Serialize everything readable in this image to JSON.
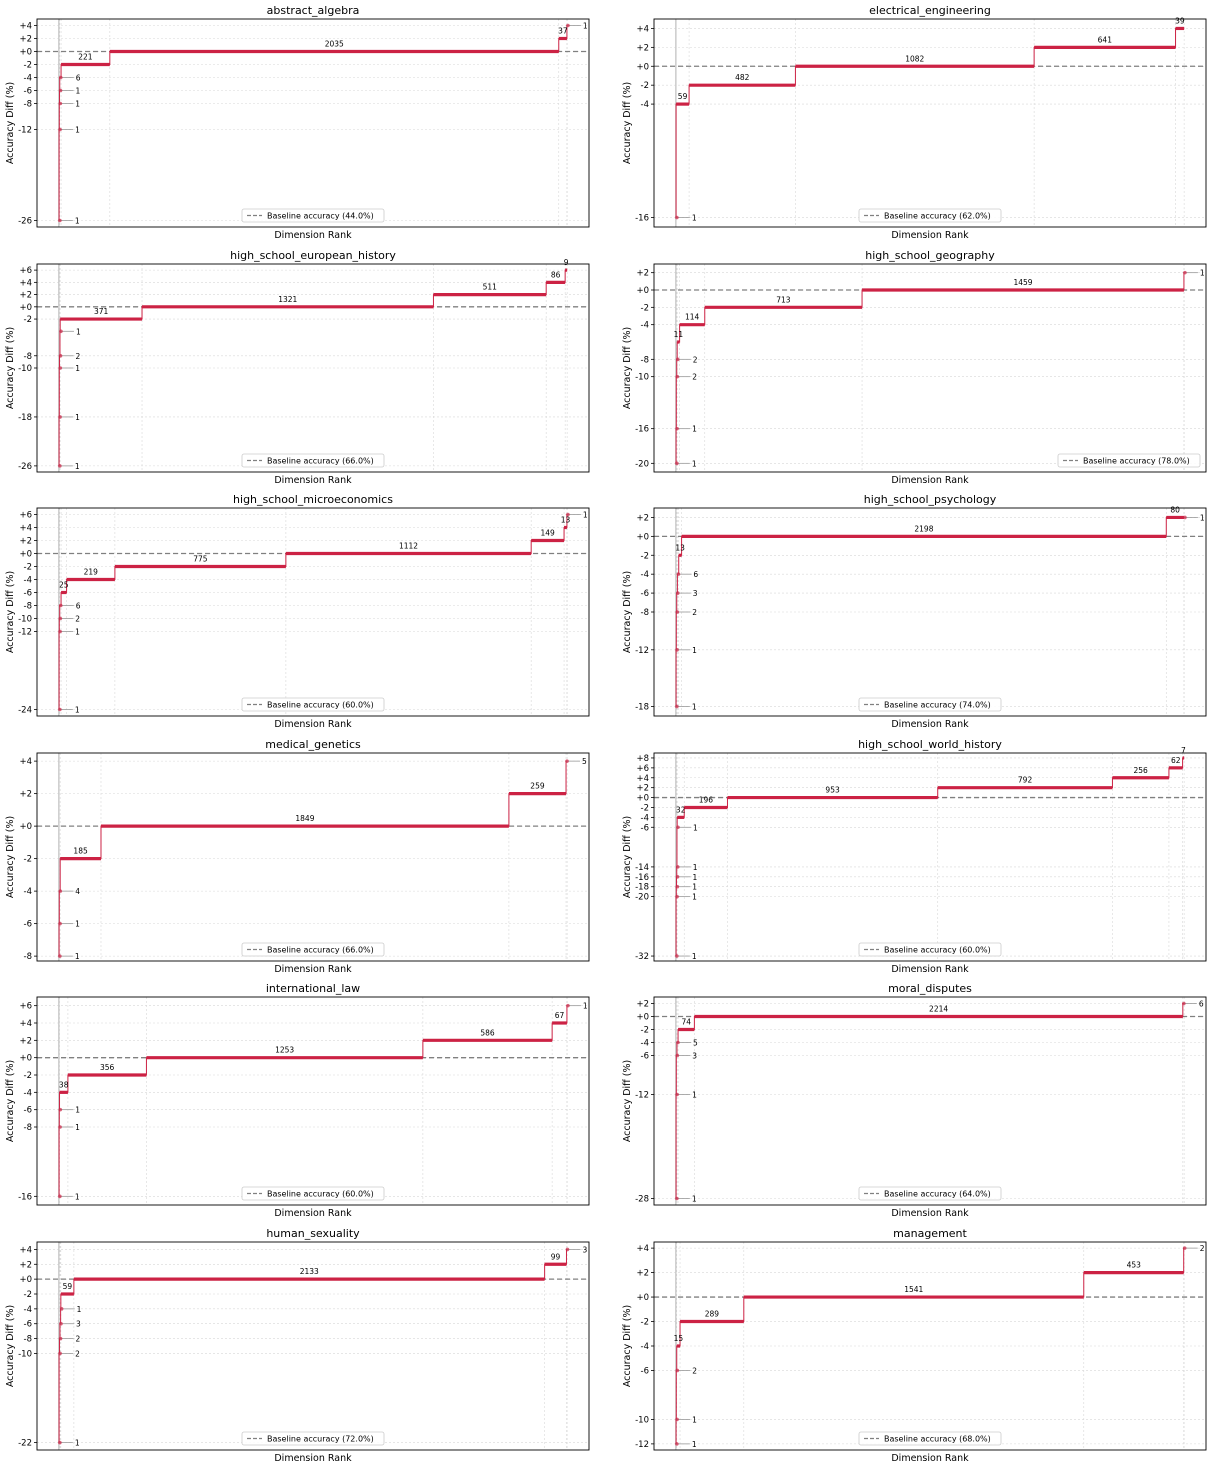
{
  "chart_data": [
    {
      "type": "line",
      "title": "abstract_algebra",
      "xlabel": "Dimension Rank",
      "ylabel": "Accuracy Diff (%)",
      "legend": "Baseline accuracy (44.0%)",
      "legend_loc": "bottom-center",
      "baseline": 0,
      "ylim": [
        -27,
        5
      ],
      "yticks": [
        -26,
        -12,
        -8,
        -6,
        -4,
        -2,
        0,
        2,
        4
      ],
      "ytick_labels": [
        "-26",
        "-12",
        "-8",
        "-6",
        "-4",
        "-2",
        "+0",
        "+2",
        "+4"
      ],
      "steps": [
        {
          "diff": -26,
          "count": 1
        },
        {
          "diff": -12,
          "count": 1
        },
        {
          "diff": -8,
          "count": 1
        },
        {
          "diff": -6,
          "count": 1
        },
        {
          "diff": -4,
          "count": 6
        },
        {
          "diff": -2,
          "count": 221
        },
        {
          "diff": 0,
          "count": 2035
        },
        {
          "diff": 2,
          "count": 37
        },
        {
          "diff": 4,
          "count": 1
        }
      ]
    },
    {
      "type": "line",
      "title": "electrical_engineering",
      "xlabel": "Dimension Rank",
      "ylabel": "Accuracy Diff (%)",
      "legend": "Baseline accuracy (62.0%)",
      "legend_loc": "bottom-center",
      "baseline": 0,
      "ylim": [
        -17,
        5
      ],
      "yticks": [
        -16,
        -4,
        -2,
        0,
        2,
        4
      ],
      "ytick_labels": [
        "-16",
        "-4",
        "-2",
        "+0",
        "+2",
        "+4"
      ],
      "steps": [
        {
          "diff": -16,
          "count": 1
        },
        {
          "diff": -4,
          "count": 59
        },
        {
          "diff": -2,
          "count": 482
        },
        {
          "diff": 0,
          "count": 1082
        },
        {
          "diff": 2,
          "count": 641
        },
        {
          "diff": 4,
          "count": 39
        }
      ]
    },
    {
      "type": "line",
      "title": "high_school_european_history",
      "xlabel": "Dimension Rank",
      "ylabel": "Accuracy Diff (%)",
      "legend": "Baseline accuracy (66.0%)",
      "legend_loc": "bottom-center",
      "baseline": 0,
      "ylim": [
        -27,
        7
      ],
      "yticks": [
        -26,
        -18,
        -10,
        -8,
        -2,
        0,
        2,
        4,
        6
      ],
      "ytick_labels": [
        "-26",
        "-18",
        "-10",
        "-8",
        "-2",
        "+0",
        "+2",
        "+4",
        "+6"
      ],
      "steps": [
        {
          "diff": -26,
          "count": 1
        },
        {
          "diff": -18,
          "count": 1
        },
        {
          "diff": -10,
          "count": 1
        },
        {
          "diff": -8,
          "count": 2
        },
        {
          "diff": -4,
          "count": 1
        },
        {
          "diff": -2,
          "count": 371
        },
        {
          "diff": 0,
          "count": 1321
        },
        {
          "diff": 2,
          "count": 511
        },
        {
          "diff": 4,
          "count": 86
        },
        {
          "diff": 6,
          "count": 9
        }
      ]
    },
    {
      "type": "line",
      "title": "high_school_geography",
      "xlabel": "Dimension Rank",
      "ylabel": "Accuracy Diff (%)",
      "legend": "Baseline accuracy (78.0%)",
      "legend_loc": "bottom-right",
      "baseline": 0,
      "ylim": [
        -21,
        3
      ],
      "yticks": [
        -20,
        -16,
        -10,
        -8,
        -4,
        -2,
        0,
        2
      ],
      "ytick_labels": [
        "-20",
        "-16",
        "-10",
        "-8",
        "-4",
        "-2",
        "+0",
        "+2"
      ],
      "steps": [
        {
          "diff": -20,
          "count": 1
        },
        {
          "diff": -16,
          "count": 1
        },
        {
          "diff": -10,
          "count": 2
        },
        {
          "diff": -8,
          "count": 2
        },
        {
          "diff": -6,
          "count": 11
        },
        {
          "diff": -4,
          "count": 114
        },
        {
          "diff": -2,
          "count": 713
        },
        {
          "diff": 0,
          "count": 1459
        },
        {
          "diff": 2,
          "count": 1
        }
      ]
    },
    {
      "type": "line",
      "title": "high_school_microeconomics",
      "xlabel": "Dimension Rank",
      "ylabel": "Accuracy Diff (%)",
      "legend": "Baseline accuracy (60.0%)",
      "legend_loc": "bottom-center",
      "baseline": 0,
      "ylim": [
        -25,
        7
      ],
      "yticks": [
        -24,
        -12,
        -10,
        -8,
        -6,
        -4,
        -2,
        0,
        2,
        4,
        6
      ],
      "ytick_labels": [
        "-24",
        "-12",
        "-10",
        "-8",
        "-6",
        "-4",
        "-2",
        "+0",
        "+2",
        "+4",
        "+6"
      ],
      "steps": [
        {
          "diff": -24,
          "count": 1
        },
        {
          "diff": -12,
          "count": 1
        },
        {
          "diff": -10,
          "count": 2
        },
        {
          "diff": -8,
          "count": 6
        },
        {
          "diff": -6,
          "count": 25
        },
        {
          "diff": -4,
          "count": 219
        },
        {
          "diff": -2,
          "count": 775
        },
        {
          "diff": 0,
          "count": 1112
        },
        {
          "diff": 2,
          "count": 149
        },
        {
          "diff": 4,
          "count": 13
        },
        {
          "diff": 6,
          "count": 1
        }
      ]
    },
    {
      "type": "line",
      "title": "high_school_psychology",
      "xlabel": "Dimension Rank",
      "ylabel": "Accuracy Diff (%)",
      "legend": "Baseline accuracy (74.0%)",
      "legend_loc": "bottom-center",
      "baseline": 0,
      "ylim": [
        -19,
        3
      ],
      "yticks": [
        -18,
        -12,
        -8,
        -6,
        -4,
        -2,
        0,
        2
      ],
      "ytick_labels": [
        "-18",
        "-12",
        "-8",
        "-6",
        "-4",
        "-2",
        "+0",
        "+2"
      ],
      "steps": [
        {
          "diff": -18,
          "count": 1
        },
        {
          "diff": -12,
          "count": 1
        },
        {
          "diff": -8,
          "count": 2
        },
        {
          "diff": -6,
          "count": 3
        },
        {
          "diff": -4,
          "count": 6
        },
        {
          "diff": -2,
          "count": 13
        },
        {
          "diff": 0,
          "count": 2198
        },
        {
          "diff": 2,
          "count": 80
        },
        {
          "diff": 2,
          "count": 1
        }
      ]
    },
    {
      "type": "line",
      "title": "medical_genetics",
      "xlabel": "Dimension Rank",
      "ylabel": "Accuracy Diff (%)",
      "legend": "Baseline accuracy (66.0%)",
      "legend_loc": "bottom-center",
      "baseline": 0,
      "ylim": [
        -8.3,
        4.5
      ],
      "yticks": [
        -8,
        -6,
        -4,
        -2,
        0,
        2,
        4
      ],
      "ytick_labels": [
        "-8",
        "-6",
        "-4",
        "-2",
        "+0",
        "+2",
        "+4"
      ],
      "steps": [
        {
          "diff": -8,
          "count": 1
        },
        {
          "diff": -6,
          "count": 1
        },
        {
          "diff": -4,
          "count": 4
        },
        {
          "diff": -2,
          "count": 185
        },
        {
          "diff": 0,
          "count": 1849
        },
        {
          "diff": 2,
          "count": 259
        },
        {
          "diff": 4,
          "count": 5
        }
      ]
    },
    {
      "type": "line",
      "title": "high_school_world_history",
      "xlabel": "Dimension Rank",
      "ylabel": "Accuracy Diff (%)",
      "legend": "Baseline accuracy (60.0%)",
      "legend_loc": "bottom-center",
      "baseline": 0,
      "ylim": [
        -33,
        9
      ],
      "yticks": [
        -32,
        -20,
        -18,
        -16,
        -14,
        -6,
        -4,
        -2,
        0,
        2,
        4,
        6,
        8
      ],
      "ytick_labels": [
        "-32",
        "-20",
        "-18",
        "-16",
        "-14",
        "-6",
        "-4",
        "-2",
        "+0",
        "+2",
        "+4",
        "+6",
        "+8"
      ],
      "steps": [
        {
          "diff": -32,
          "count": 1
        },
        {
          "diff": -20,
          "count": 1
        },
        {
          "diff": -18,
          "count": 1
        },
        {
          "diff": -16,
          "count": 1
        },
        {
          "diff": -14,
          "count": 1
        },
        {
          "diff": -6,
          "count": 1
        },
        {
          "diff": -4,
          "count": 32
        },
        {
          "diff": -2,
          "count": 196
        },
        {
          "diff": 0,
          "count": 953
        },
        {
          "diff": 2,
          "count": 792
        },
        {
          "diff": 4,
          "count": 256
        },
        {
          "diff": 6,
          "count": 62
        },
        {
          "diff": 8,
          "count": 7
        }
      ]
    },
    {
      "type": "line",
      "title": "international_law",
      "xlabel": "Dimension Rank",
      "ylabel": "Accuracy Diff (%)",
      "legend": "Baseline accuracy (60.0%)",
      "legend_loc": "bottom-center",
      "baseline": 0,
      "ylim": [
        -17,
        7
      ],
      "yticks": [
        -16,
        -8,
        -6,
        -4,
        -2,
        0,
        2,
        4,
        6
      ],
      "ytick_labels": [
        "-16",
        "-8",
        "-6",
        "-4",
        "-2",
        "+0",
        "+2",
        "+4",
        "+6"
      ],
      "steps": [
        {
          "diff": -16,
          "count": 1
        },
        {
          "diff": -8,
          "count": 1
        },
        {
          "diff": -6,
          "count": 1
        },
        {
          "diff": -4,
          "count": 38
        },
        {
          "diff": -2,
          "count": 356
        },
        {
          "diff": 0,
          "count": 1253
        },
        {
          "diff": 2,
          "count": 586
        },
        {
          "diff": 4,
          "count": 67
        },
        {
          "diff": 6,
          "count": 1
        }
      ]
    },
    {
      "type": "line",
      "title": "moral_disputes",
      "xlabel": "Dimension Rank",
      "ylabel": "Accuracy Diff (%)",
      "legend": "Baseline accuracy (64.0%)",
      "legend_loc": "bottom-center",
      "baseline": 0,
      "ylim": [
        -29,
        3
      ],
      "yticks": [
        -28,
        -12,
        -6,
        -4,
        -2,
        0,
        2
      ],
      "ytick_labels": [
        "-28",
        "-12",
        "-6",
        "-4",
        "-2",
        "+0",
        "+2"
      ],
      "steps": [
        {
          "diff": -28,
          "count": 1
        },
        {
          "diff": -12,
          "count": 1
        },
        {
          "diff": -6,
          "count": 3
        },
        {
          "diff": -4,
          "count": 5
        },
        {
          "diff": -2,
          "count": 74
        },
        {
          "diff": 0,
          "count": 2214
        },
        {
          "diff": 2,
          "count": 6
        }
      ]
    },
    {
      "type": "line",
      "title": "human_sexuality",
      "xlabel": "Dimension Rank",
      "ylabel": "Accuracy Diff (%)",
      "legend": "Baseline accuracy (72.0%)",
      "legend_loc": "bottom-center",
      "baseline": 0,
      "ylim": [
        -23,
        5
      ],
      "yticks": [
        -22,
        -10,
        -8,
        -6,
        -4,
        -2,
        0,
        2,
        4
      ],
      "ytick_labels": [
        "-22",
        "-10",
        "-8",
        "-6",
        "-4",
        "-2",
        "+0",
        "+2",
        "+4"
      ],
      "steps": [
        {
          "diff": -22,
          "count": 1
        },
        {
          "diff": -10,
          "count": 2
        },
        {
          "diff": -8,
          "count": 2
        },
        {
          "diff": -6,
          "count": 3
        },
        {
          "diff": -4,
          "count": 1
        },
        {
          "diff": -2,
          "count": 59
        },
        {
          "diff": 0,
          "count": 2133
        },
        {
          "diff": 2,
          "count": 99
        },
        {
          "diff": 4,
          "count": 3
        }
      ]
    },
    {
      "type": "line",
      "title": "management",
      "xlabel": "Dimension Rank",
      "ylabel": "Accuracy Diff (%)",
      "legend": "Baseline accuracy (68.0%)",
      "legend_loc": "bottom-center",
      "baseline": 0,
      "ylim": [
        -12.5,
        4.5
      ],
      "yticks": [
        -12,
        -10,
        -6,
        -4,
        -2,
        0,
        2,
        4
      ],
      "ytick_labels": [
        "-12",
        "-10",
        "-6",
        "-4",
        "-2",
        "+0",
        "+2",
        "+4"
      ],
      "steps": [
        {
          "diff": -12,
          "count": 1
        },
        {
          "diff": -10,
          "count": 1
        },
        {
          "diff": -6,
          "count": 2
        },
        {
          "diff": -4,
          "count": 15
        },
        {
          "diff": -2,
          "count": 289
        },
        {
          "diff": 0,
          "count": 1541
        },
        {
          "diff": 2,
          "count": 453
        },
        {
          "diff": 4,
          "count": 2
        }
      ]
    }
  ],
  "colors": {
    "step_line": "#cc2244",
    "baseline": "#808080",
    "grid": "#d8d8d8",
    "small_marker": "#999999"
  }
}
